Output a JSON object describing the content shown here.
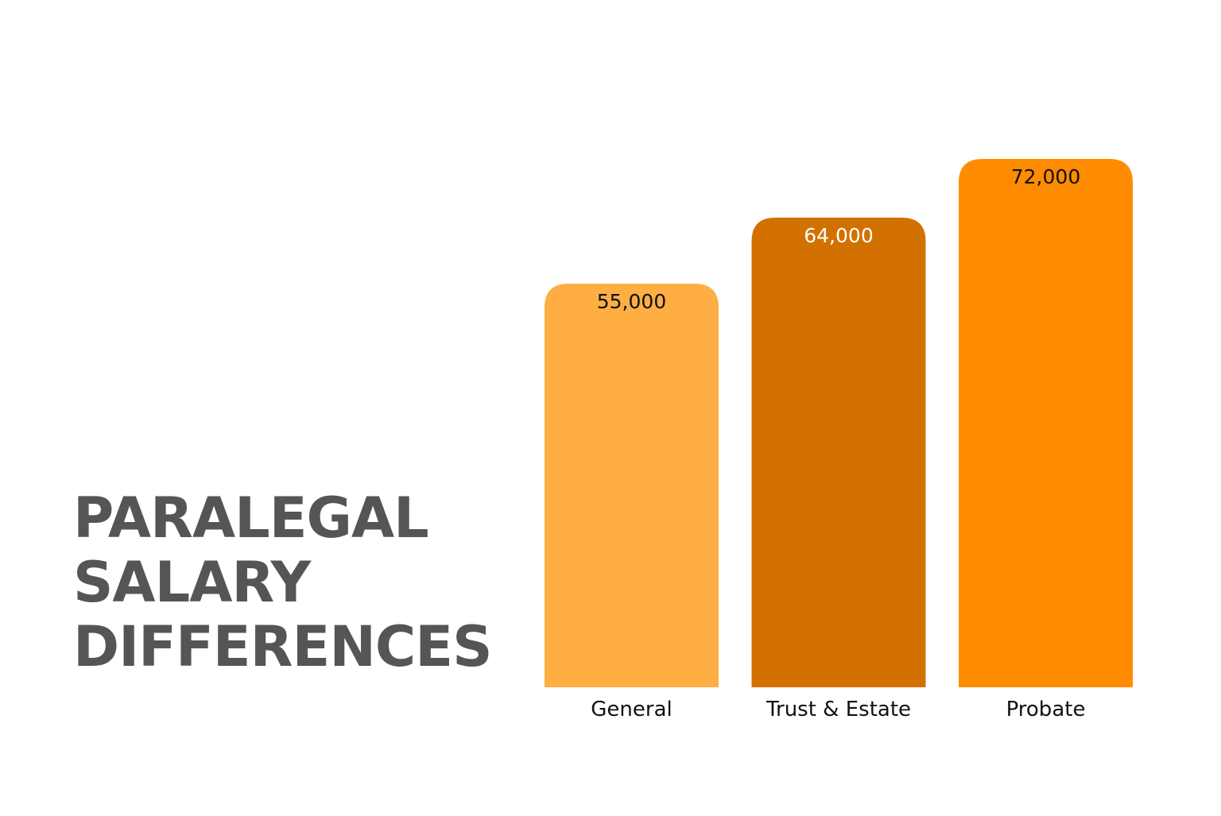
{
  "title_lines": [
    "PARALEGAL",
    "SALARY",
    "DIFFERENCES"
  ],
  "chart_data": {
    "type": "bar",
    "categories": [
      "General",
      "Trust & Estate",
      "Probate"
    ],
    "values": [
      55000,
      64000,
      72000
    ],
    "value_labels": [
      "55,000",
      "64,000",
      "72,000"
    ],
    "bar_colors": [
      "#FFAE44",
      "#D27100",
      "#FF8C00"
    ],
    "value_label_colors": [
      "#111111",
      "#ffffff",
      "#111111"
    ],
    "xlabel": "",
    "ylabel": "",
    "grid": false,
    "legend": "none"
  }
}
